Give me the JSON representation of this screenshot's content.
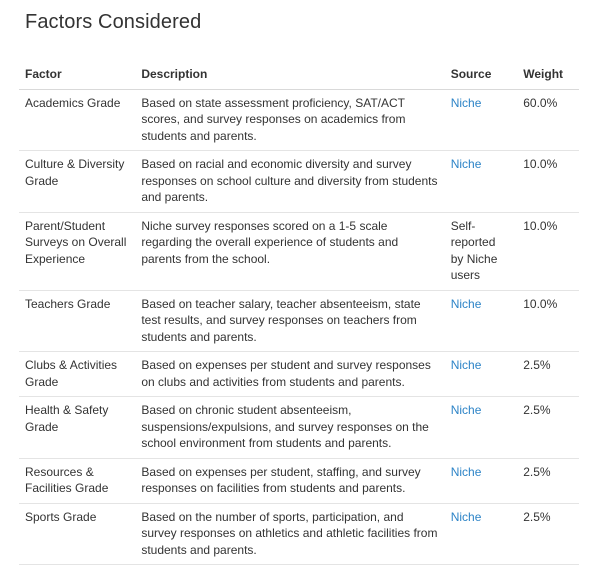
{
  "page": {
    "title": "Factors Considered"
  },
  "table": {
    "headers": {
      "factor": "Factor",
      "description": "Description",
      "source": "Source",
      "weight": "Weight"
    },
    "rows": [
      {
        "factor": "Academics Grade",
        "description": "Based on state assessment proficiency, SAT/ACT scores, and survey responses on academics from students and parents.",
        "source": "Niche",
        "source_is_link": true,
        "weight": "60.0%"
      },
      {
        "factor": "Culture & Diversity Grade",
        "description": "Based on racial and economic diversity and survey responses on school culture and diversity from students and parents.",
        "source": "Niche",
        "source_is_link": true,
        "weight": "10.0%"
      },
      {
        "factor": "Parent/Student Surveys on Overall Experience",
        "description": "Niche survey responses scored on a 1-5 scale regarding the overall experience of students and parents from the school.",
        "source": "Self-reported by Niche users",
        "source_is_link": false,
        "weight": "10.0%"
      },
      {
        "factor": "Teachers Grade",
        "description": "Based on teacher salary, teacher absenteeism, state test results, and survey responses on teachers from students and parents.",
        "source": "Niche",
        "source_is_link": true,
        "weight": "10.0%"
      },
      {
        "factor": "Clubs & Activities Grade",
        "description": "Based on expenses per student and survey responses on clubs and activities from students and parents.",
        "source": "Niche",
        "source_is_link": true,
        "weight": "2.5%"
      },
      {
        "factor": "Health & Safety Grade",
        "description": "Based on chronic student absenteeism, suspensions/expulsions, and survey responses on the school environment from students and parents.",
        "source": "Niche",
        "source_is_link": true,
        "weight": "2.5%"
      },
      {
        "factor": "Resources & Facilities Grade",
        "description": "Based on expenses per student, staffing, and survey responses on facilities from students and parents.",
        "source": "Niche",
        "source_is_link": true,
        "weight": "2.5%"
      },
      {
        "factor": "Sports Grade",
        "description": "Based on the number of sports, participation, and survey responses on athletics and athletic facilities from students and parents.",
        "source": "Niche",
        "source_is_link": true,
        "weight": "2.5%"
      }
    ]
  },
  "colors": {
    "link": "#2d84c7",
    "text": "#333333",
    "divider": "#e4e4e4"
  }
}
